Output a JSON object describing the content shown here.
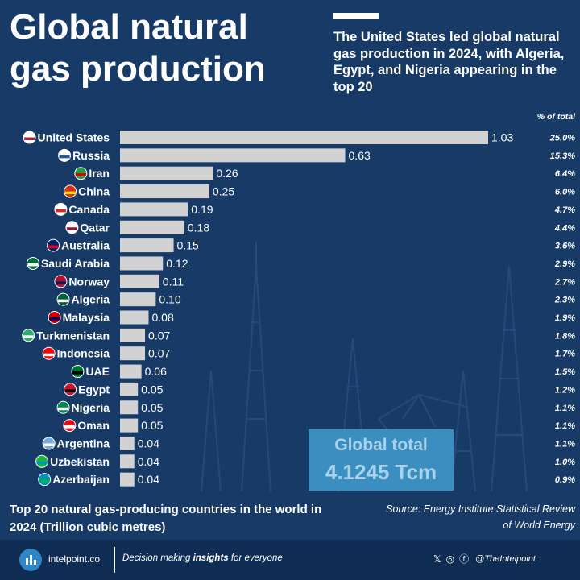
{
  "header": {
    "title": "Global natural gas production",
    "subtitle": "The United States led global natural gas production in 2024, with Algeria, Egypt, and Nigeria appearing in the top 20"
  },
  "colors": {
    "background": "#173a66",
    "bar": "#d2d2d2",
    "total_box": "#3a8fc0",
    "footer": "#0f2c52"
  },
  "chart_data": {
    "type": "bar",
    "orientation": "horizontal",
    "pct_header": "% of total",
    "categories": [
      "United States",
      "Russia",
      "Iran",
      "China",
      "Canada",
      "Qatar",
      "Australia",
      "Saudi Arabia",
      "Norway",
      "Algeria",
      "Malaysia",
      "Turkmenistan",
      "Indonesia",
      "UAE",
      "Egypt",
      "Nigeria",
      "Oman",
      "Argentina",
      "Uzbekistan",
      "Azerbaijan"
    ],
    "values": [
      1.03,
      0.63,
      0.26,
      0.25,
      0.19,
      0.18,
      0.15,
      0.12,
      0.11,
      0.1,
      0.08,
      0.07,
      0.07,
      0.06,
      0.05,
      0.05,
      0.05,
      0.04,
      0.04,
      0.04
    ],
    "value_labels": [
      "1.03",
      "0.63",
      "0.26",
      "0.25",
      "0.19",
      "0.18",
      "0.15",
      "0.12",
      "0.11",
      "0.10",
      "0.08",
      "0.07",
      "0.07",
      "0.06",
      "0.05",
      "0.05",
      "0.05",
      "0.04",
      "0.04",
      "0.04"
    ],
    "percent_of_total": [
      "25.0%",
      "15.3%",
      "6.4%",
      "6.0%",
      "4.7%",
      "4.4%",
      "3.6%",
      "2.9%",
      "2.7%",
      "2.3%",
      "1.9%",
      "1.8%",
      "1.7%",
      "1.5%",
      "1.2%",
      "1.1%",
      "1.1%",
      "1.1%",
      "1.0%",
      "0.9%"
    ],
    "flag_colors": [
      [
        "#ffffff",
        "#b22234"
      ],
      [
        "#ffffff",
        "#1c57a5"
      ],
      [
        "#239f40",
        "#da0000"
      ],
      [
        "#de2910",
        "#ffde00"
      ],
      [
        "#ffffff",
        "#d52b1e"
      ],
      [
        "#ffffff",
        "#8a1538"
      ],
      [
        "#012169",
        "#e4002b"
      ],
      [
        "#006c35",
        "#ffffff"
      ],
      [
        "#ba0c2f",
        "#00205b"
      ],
      [
        "#006233",
        "#ffffff"
      ],
      [
        "#cc0001",
        "#010066"
      ],
      [
        "#28ae66",
        "#ffffff"
      ],
      [
        "#ff0000",
        "#ffffff"
      ],
      [
        "#00732f",
        "#000000"
      ],
      [
        "#ce1126",
        "#000000"
      ],
      [
        "#008751",
        "#ffffff"
      ],
      [
        "#db161b",
        "#ffffff"
      ],
      [
        "#74acdf",
        "#ffffff"
      ],
      [
        "#1eb53a",
        "#0099b5"
      ],
      [
        "#0092bc",
        "#00b050"
      ]
    ],
    "grid": false,
    "legend": "none"
  },
  "total": {
    "label": "Global total",
    "value": "4.1245 Tcm"
  },
  "caption": "Top 20 natural gas-producing countries in the world in 2024 (Trillion cubic metres)",
  "source": "Source: Energy Institute Statistical Review of World Energy",
  "footer": {
    "brand": "intelpoint.co",
    "tagline_pre": "Decision making ",
    "tagline_bold": "insights",
    "tagline_post": " for everyone",
    "x_glyph": "𝕏",
    "ig_glyph": "◎",
    "fb_glyph": "ⓕ",
    "handle": "@TheIntelpoint"
  }
}
